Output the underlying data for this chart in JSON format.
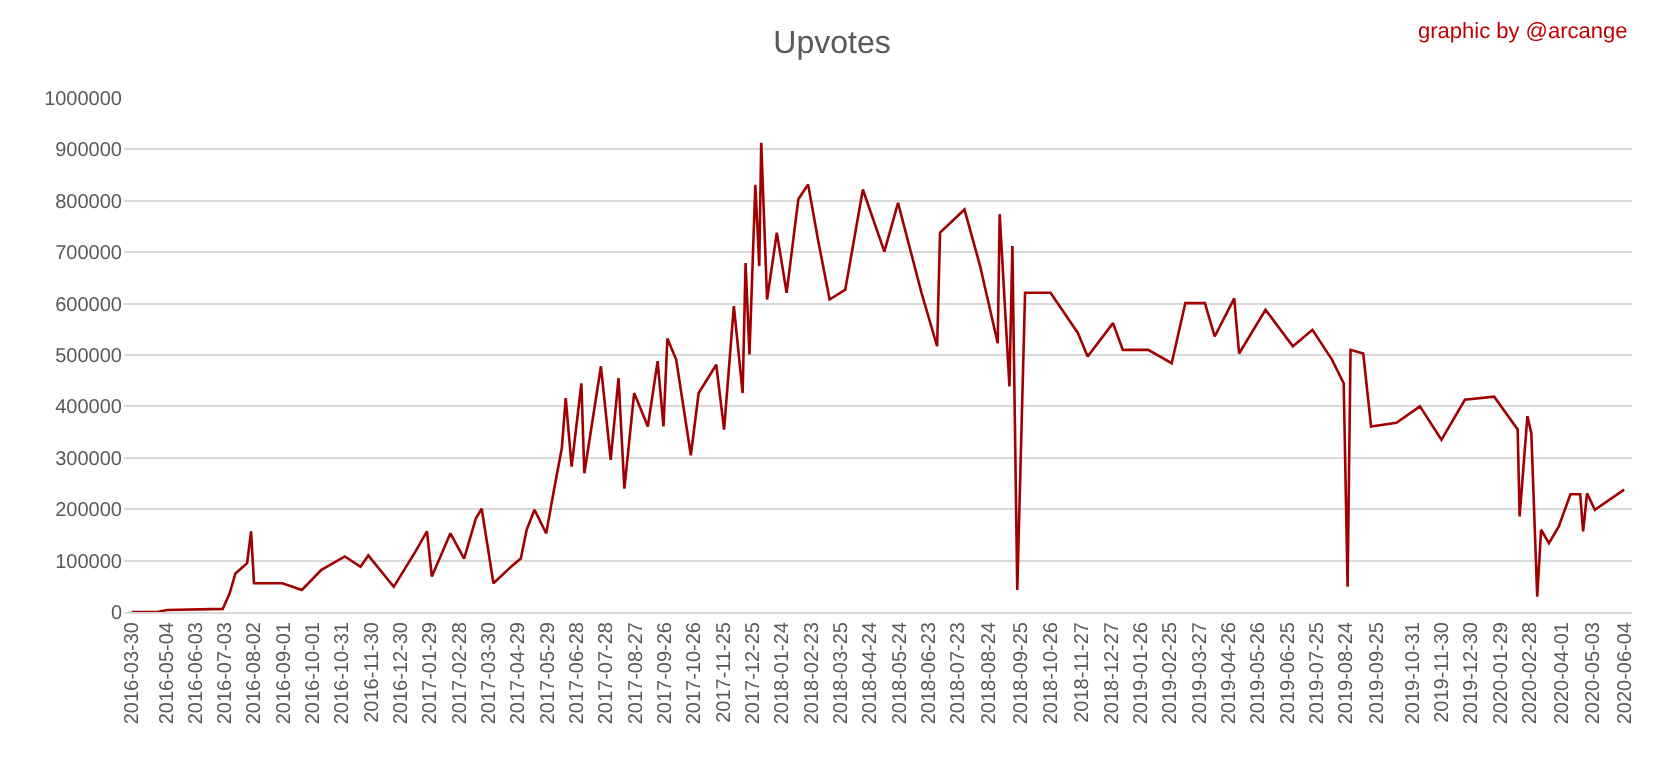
{
  "chart_data": {
    "type": "line",
    "title": "Upvotes",
    "annotations": [
      "graphic by @arcange"
    ],
    "x": [
      "2016-03-30",
      "2016-04-25",
      "2016-05-05",
      "2016-07-01",
      "2016-07-08",
      "2016-07-14",
      "2016-07-26",
      "2016-07-30",
      "2016-08-02",
      "2016-08-31",
      "2016-09-20",
      "2016-10-10",
      "2016-11-03",
      "2016-11-19",
      "2016-11-27",
      "2016-12-23",
      "2017-01-14",
      "2017-01-26",
      "2017-01-31",
      "2017-02-19",
      "2017-03-05",
      "2017-03-17",
      "2017-03-23",
      "2017-04-04",
      "2017-04-22",
      "2017-05-02",
      "2017-05-08",
      "2017-05-16",
      "2017-05-28",
      "2017-06-05",
      "2017-06-13",
      "2017-06-17",
      "2017-06-23",
      "2017-07-03",
      "2017-07-06",
      "2017-07-23",
      "2017-08-02",
      "2017-08-10",
      "2017-08-16",
      "2017-08-26",
      "2017-09-09",
      "2017-09-19",
      "2017-09-25",
      "2017-09-29",
      "2017-10-08",
      "2017-10-23",
      "2017-10-31",
      "2017-11-18",
      "2017-11-26",
      "2017-12-06",
      "2017-12-15",
      "2017-12-18",
      "2017-12-22",
      "2017-12-28",
      "2018-01-01",
      "2018-01-03",
      "2018-01-09",
      "2018-01-19",
      "2018-01-29",
      "2018-02-10",
      "2018-02-20",
      "2018-03-02",
      "2018-03-14",
      "2018-03-30",
      "2018-04-17",
      "2018-05-09",
      "2018-05-23",
      "2018-06-16",
      "2018-07-02",
      "2018-07-05",
      "2018-07-30",
      "2018-08-15",
      "2018-09-02",
      "2018-09-04",
      "2018-09-14",
      "2018-09-17",
      "2018-09-22",
      "2018-09-30",
      "2018-10-26",
      "2018-11-23",
      "2018-12-03",
      "2018-12-29",
      "2019-01-08",
      "2019-02-03",
      "2019-02-27",
      "2019-03-13",
      "2019-04-02",
      "2019-04-12",
      "2019-05-02",
      "2019-05-07",
      "2019-06-03",
      "2019-07-01",
      "2019-07-21",
      "2019-08-10",
      "2019-08-22",
      "2019-08-26",
      "2019-08-29",
      "2019-09-11",
      "2019-09-19",
      "2019-10-15",
      "2019-11-08",
      "2019-11-30",
      "2019-12-24",
      "2020-01-23",
      "2020-02-16",
      "2020-02-18",
      "2020-02-26",
      "2020-03-01",
      "2020-03-07",
      "2020-03-11",
      "2020-03-19",
      "2020-03-29",
      "2020-04-10",
      "2020-04-20",
      "2020-04-23",
      "2020-04-27",
      "2020-05-05",
      "2020-06-04"
    ],
    "series": [
      {
        "color": "#a00000",
        "values": [
          0,
          0,
          4000,
          6000,
          36000,
          75000,
          95000,
          157000,
          56000,
          56000,
          43000,
          82000,
          108000,
          88000,
          110000,
          49000,
          117000,
          157000,
          69000,
          153000,
          104000,
          182000,
          201000,
          56000,
          88000,
          104000,
          160000,
          199000,
          153000,
          238000,
          319000,
          416000,
          283000,
          445000,
          270000,
          478000,
          296000,
          455000,
          240000,
          426000,
          361000,
          488000,
          361000,
          532000,
          491000,
          305000,
          426000,
          481000,
          355000,
          595000,
          426000,
          679000,
          501000,
          831000,
          673000,
          913000,
          608000,
          738000,
          621000,
          803000,
          832000,
          725000,
          608000,
          627000,
          822000,
          701000,
          796000,
          621000,
          517000,
          738000,
          783000,
          673000,
          523000,
          774000,
          439000,
          712000,
          43000,
          621000,
          621000,
          543000,
          497000,
          562000,
          510000,
          510000,
          484000,
          601000,
          601000,
          536000,
          610000,
          503000,
          588000,
          517000,
          549000,
          491000,
          445000,
          49000,
          510000,
          503000,
          361000,
          368000,
          400000,
          335000,
          413000,
          419000,
          355000,
          186000,
          381000,
          348000,
          30000,
          160000,
          134000,
          166000,
          229000,
          229000,
          157000,
          231000,
          199000,
          238000
        ]
      }
    ],
    "xlim": [
      "2016-03-22",
      "2020-06-12"
    ],
    "xticks": [
      "2016-03-30",
      "2016-05-04",
      "2016-06-03",
      "2016-07-03",
      "2016-08-02",
      "2016-09-01",
      "2016-10-01",
      "2016-10-31",
      "2016-11-30",
      "2016-12-30",
      "2017-01-29",
      "2017-02-28",
      "2017-03-30",
      "2017-04-29",
      "2017-05-29",
      "2017-06-28",
      "2017-07-28",
      "2017-08-27",
      "2017-09-26",
      "2017-10-26",
      "2017-11-25",
      "2017-12-25",
      "2018-01-24",
      "2018-02-23",
      "2018-03-25",
      "2018-04-24",
      "2018-05-24",
      "2018-06-23",
      "2018-07-23",
      "2018-08-24",
      "2018-09-25",
      "2018-10-26",
      "2018-11-27",
      "2018-12-27",
      "2019-01-26",
      "2019-02-25",
      "2019-03-27",
      "2019-04-26",
      "2019-05-26",
      "2019-06-25",
      "2019-07-25",
      "2019-08-24",
      "2019-09-25",
      "2019-10-31",
      "2019-11-30",
      "2019-12-30",
      "2020-01-29",
      "2020-02-28",
      "2020-04-01",
      "2020-05-03",
      "2020-06-04"
    ],
    "ylim": [
      0,
      1000000
    ],
    "yticks": [
      0,
      100000,
      200000,
      300000,
      400000,
      500000,
      600000,
      700000,
      800000,
      900000,
      1000000
    ],
    "grid": "y",
    "marker": "none",
    "line_style": "solid"
  }
}
